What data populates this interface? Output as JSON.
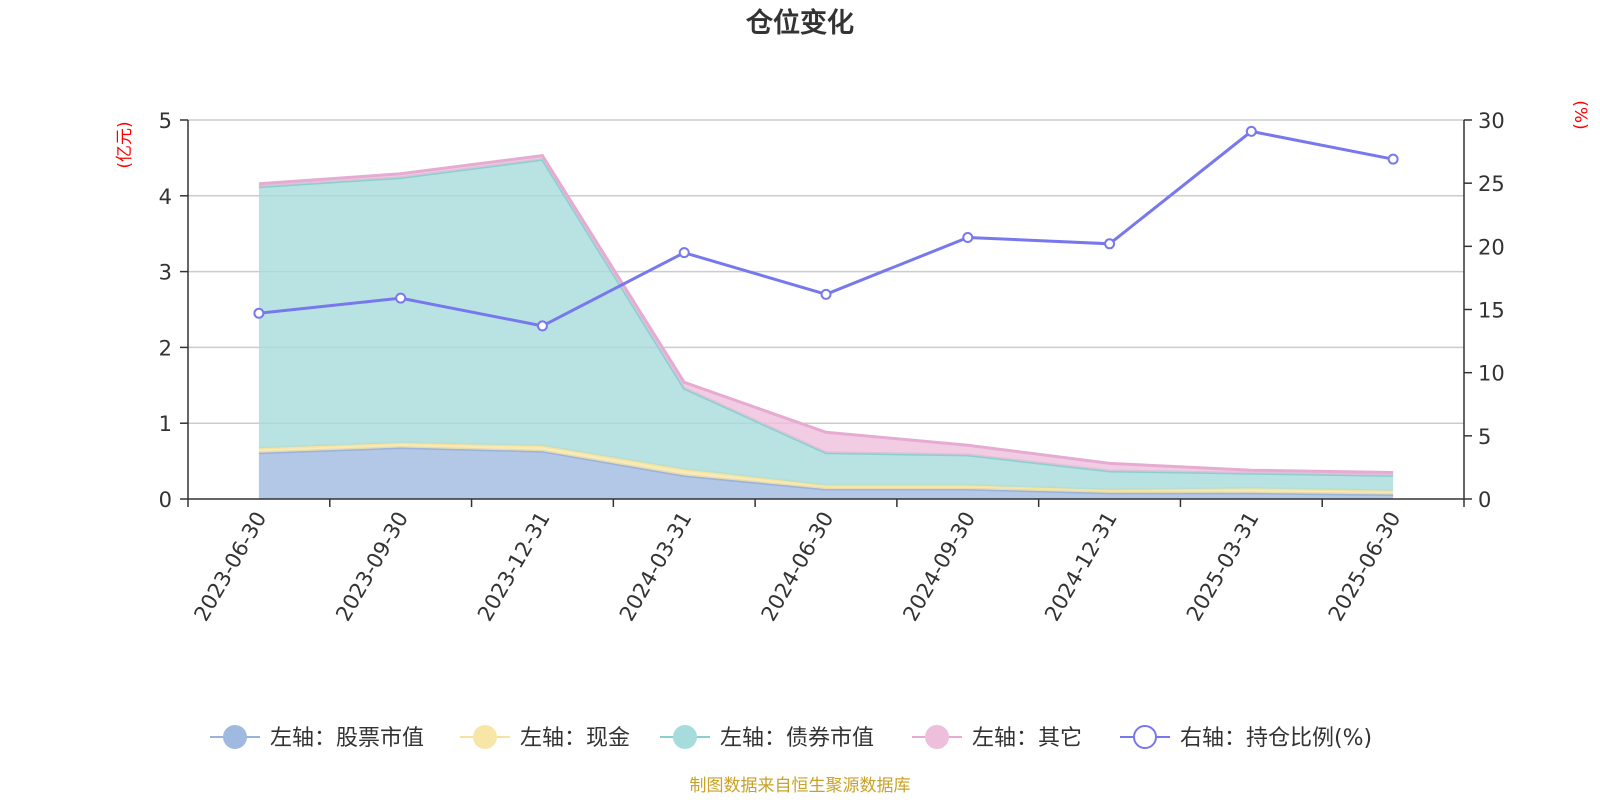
{
  "chart_data": {
    "type": "area",
    "title": "仓位变化",
    "left_axis_unit": "(亿元)",
    "right_axis_unit": "(%)",
    "categories": [
      "2023-06-30",
      "2023-09-30",
      "2023-12-31",
      "2024-03-31",
      "2024-06-30",
      "2024-09-30",
      "2024-12-31",
      "2025-03-31",
      "2025-06-30"
    ],
    "left_ylim": [
      0,
      5
    ],
    "left_ticks": [
      0,
      1,
      2,
      3,
      4,
      5
    ],
    "right_ylim": [
      0,
      30
    ],
    "right_ticks": [
      0,
      5,
      10,
      15,
      20,
      25,
      30
    ],
    "grid": true,
    "legend_position": "bottom",
    "stacked_series": [
      {
        "name": "左轴：股票市值",
        "axis": "left",
        "color": "#a0b9e0",
        "line_color": "#9ab2dc",
        "values": [
          0.61,
          0.68,
          0.63,
          0.31,
          0.13,
          0.13,
          0.08,
          0.08,
          0.06
        ]
      },
      {
        "name": "左轴：现金",
        "axis": "left",
        "color": "#f8e6a6",
        "line_color": "#f5e3a0",
        "values": [
          0.06,
          0.06,
          0.07,
          0.08,
          0.05,
          0.05,
          0.04,
          0.06,
          0.05
        ]
      },
      {
        "name": "左轴：债券市值",
        "axis": "left",
        "color": "#a7dcdc",
        "line_color": "#8ccfcf",
        "values": [
          3.45,
          3.5,
          3.78,
          1.07,
          0.43,
          0.4,
          0.25,
          0.2,
          0.2
        ]
      },
      {
        "name": "左轴：其它",
        "axis": "left",
        "color": "#edbfdc",
        "line_color": "#e6abd2",
        "values": [
          0.04,
          0.05,
          0.05,
          0.08,
          0.27,
          0.13,
          0.1,
          0.04,
          0.04
        ]
      }
    ],
    "line_series": {
      "name": "右轴：持仓比例(%)",
      "axis": "right",
      "color": "#7878ee",
      "values": [
        14.7,
        15.9,
        13.7,
        19.5,
        16.2,
        20.7,
        20.2,
        29.1,
        26.9
      ]
    },
    "axis_label_color": "#ff0000",
    "source_note": "制图数据来自恒生聚源数据库",
    "source_color": "#c9a227"
  }
}
